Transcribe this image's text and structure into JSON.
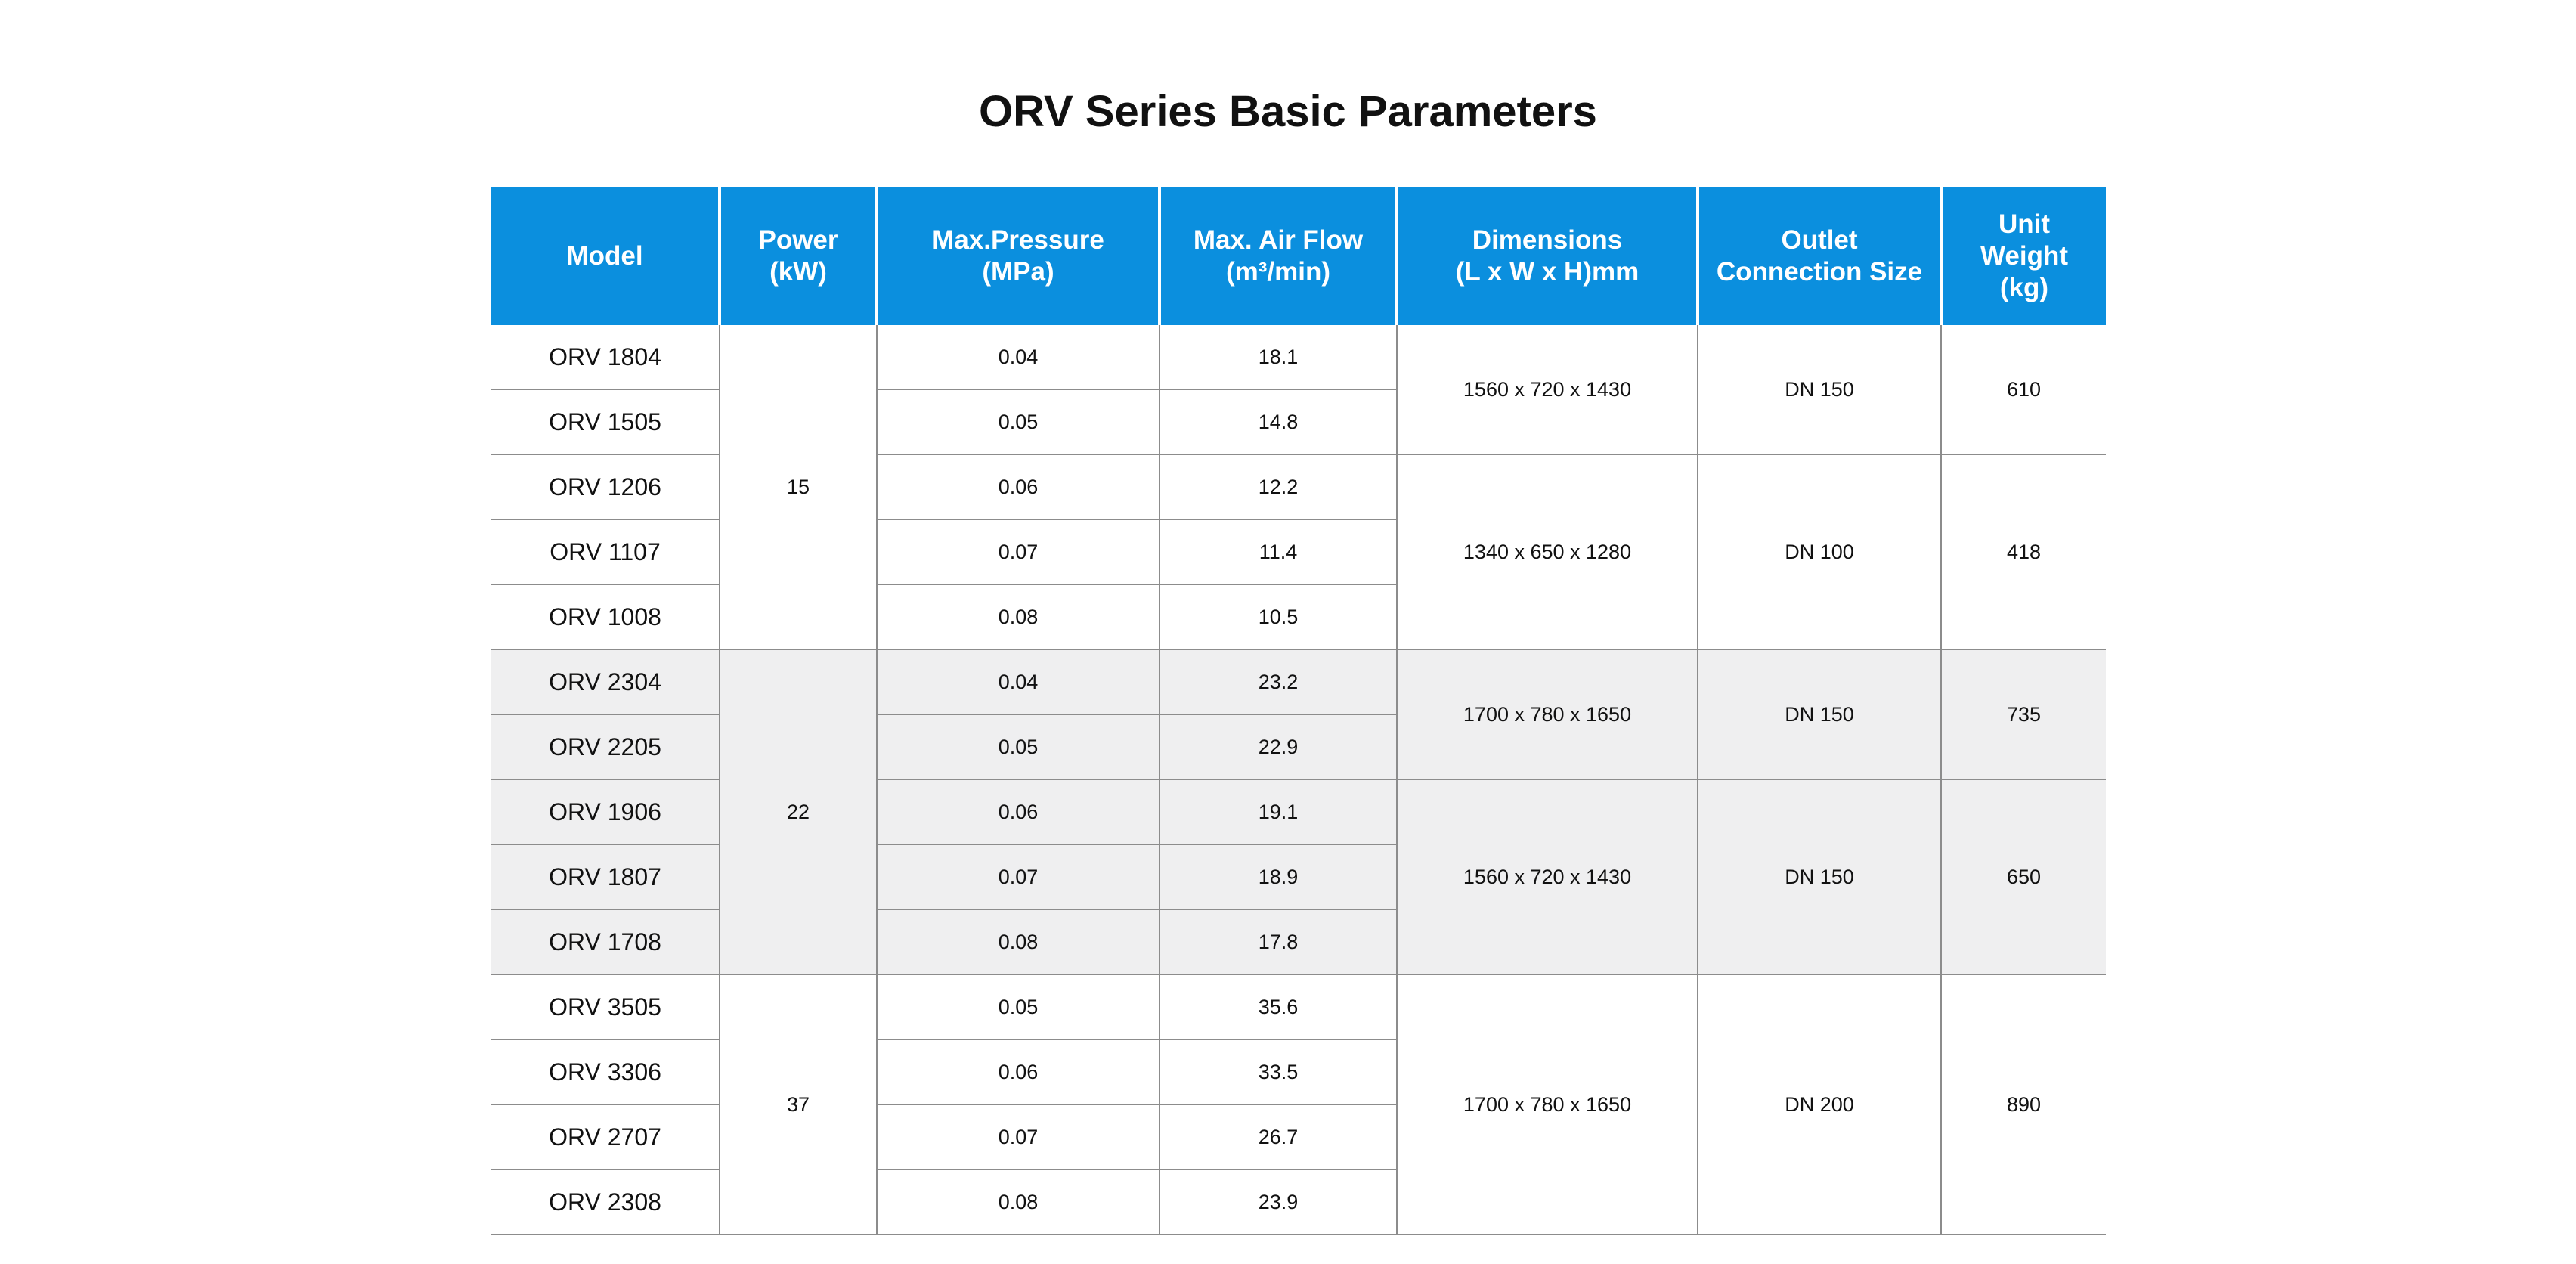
{
  "title": "ORV Series Basic Parameters",
  "table": {
    "headers": [
      [
        "Model"
      ],
      [
        "Power",
        "(kW)"
      ],
      [
        "Max.Pressure",
        "(MPa)"
      ],
      [
        "Max. Air Flow",
        "(m³/min)"
      ],
      [
        "Dimensions",
        "(L x W x H)mm"
      ],
      [
        "Outlet",
        "Connection Size"
      ],
      [
        "Unit",
        "Weight",
        "(kg)"
      ]
    ],
    "rows": [
      {
        "model": "ORV 1804",
        "pressure": "0.04",
        "air_flow": "18.1"
      },
      {
        "model": "ORV 1505",
        "pressure": "0.05",
        "air_flow": "14.8"
      },
      {
        "model": "ORV 1206",
        "pressure": "0.06",
        "air_flow": "12.2"
      },
      {
        "model": "ORV 1107",
        "pressure": "0.07",
        "air_flow": "11.4"
      },
      {
        "model": "ORV 1008",
        "pressure": "0.08",
        "air_flow": "10.5"
      },
      {
        "model": "ORV 2304",
        "pressure": "0.04",
        "air_flow": "23.2"
      },
      {
        "model": "ORV 2205",
        "pressure": "0.05",
        "air_flow": "22.9"
      },
      {
        "model": "ORV 1906",
        "pressure": "0.06",
        "air_flow": "19.1"
      },
      {
        "model": "ORV 1807",
        "pressure": "0.07",
        "air_flow": "18.9"
      },
      {
        "model": "ORV 1708",
        "pressure": "0.08",
        "air_flow": "17.8"
      },
      {
        "model": "ORV 3505",
        "pressure": "0.05",
        "air_flow": "35.6"
      },
      {
        "model": "ORV 3306",
        "pressure": "0.06",
        "air_flow": "33.5"
      },
      {
        "model": "ORV 2707",
        "pressure": "0.07",
        "air_flow": "26.7"
      },
      {
        "model": "ORV 2308",
        "pressure": "0.08",
        "air_flow": "23.9"
      }
    ],
    "power_groups": [
      {
        "value": "15",
        "first_row": 0,
        "rows": 5
      },
      {
        "value": "22",
        "first_row": 5,
        "rows": 5
      },
      {
        "value": "37",
        "first_row": 10,
        "rows": 4
      }
    ],
    "spec_groups": [
      {
        "dimensions": "1560 x 720 x 1430",
        "outlet": "DN 150",
        "weight": "610",
        "first_row": 0,
        "rows": 2
      },
      {
        "dimensions": "1340 x 650 x 1280",
        "outlet": "DN 100",
        "weight": "418",
        "first_row": 2,
        "rows": 3
      },
      {
        "dimensions": "1700 x 780 x 1650",
        "outlet": "DN 150",
        "weight": "735",
        "first_row": 5,
        "rows": 2
      },
      {
        "dimensions": "1560 x 720 x 1430",
        "outlet": "DN 150",
        "weight": "650",
        "first_row": 7,
        "rows": 3
      },
      {
        "dimensions": "1700 x 780 x 1650",
        "outlet": "DN 200",
        "weight": "890",
        "first_row": 10,
        "rows": 4
      }
    ],
    "shaded_rows": [
      5,
      6,
      7,
      8,
      9
    ],
    "colors": {
      "header_background": "#0b8fde",
      "header_text": "#ffffff",
      "shaded_row": "#efeff0",
      "grid_line": "#8c8c8c"
    }
  }
}
